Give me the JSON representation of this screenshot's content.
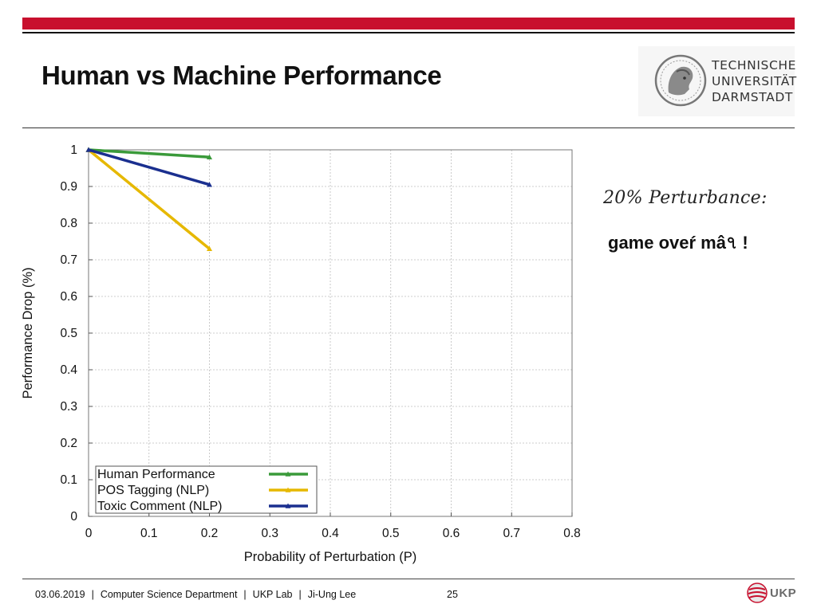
{
  "slide": {
    "title": "Human vs Machine Performance",
    "note_line1": "20% Perturbance:",
    "note_line2": "game oveŕ mâ৭ !"
  },
  "logo": {
    "lines": [
      "TECHNISCHE",
      "UNIVERSITÄT",
      "DARMSTADT"
    ]
  },
  "footer": {
    "date": "03.06.2019",
    "department": "Computer Science Department",
    "lab": "UKP Lab",
    "author": "Ji-Ung Lee",
    "separator": "|",
    "page": "25",
    "ukp_logo_text": "UKP"
  },
  "colors": {
    "accent_red": "#c8102e",
    "human": "#3a9a3a",
    "pos": "#e6b800",
    "toxic": "#1a2f8f"
  },
  "chart_data": {
    "type": "line",
    "xlabel": "Probability of Perturbation (P)",
    "ylabel": "Performance Drop (%)",
    "xlim": [
      0,
      0.8
    ],
    "ylim": [
      0,
      1
    ],
    "xticks": [
      0,
      0.1,
      0.2,
      0.3,
      0.4,
      0.5,
      0.6,
      0.7,
      0.8
    ],
    "xtick_labels": [
      "0",
      "0.1",
      "0.2",
      "0.3",
      "0.4",
      "0.5",
      "0.6",
      "0.7",
      "0.8"
    ],
    "yticks": [
      0,
      0.1,
      0.2,
      0.3,
      0.4,
      0.5,
      0.6,
      0.7,
      0.8,
      0.9,
      1
    ],
    "ytick_labels": [
      "0",
      "0.1",
      "0.2",
      "0.3",
      "0.4",
      "0.5",
      "0.6",
      "0.7",
      "0.8",
      "0.9",
      "1"
    ],
    "grid": true,
    "legend_position": "bottom-left",
    "series": [
      {
        "name": "Human Performance",
        "color": "#3a9a3a",
        "x": [
          0,
          0.2
        ],
        "y": [
          1.0,
          0.98
        ]
      },
      {
        "name": "POS Tagging (NLP)",
        "color": "#e6b800",
        "x": [
          0,
          0.2
        ],
        "y": [
          1.0,
          0.73
        ]
      },
      {
        "name": "Toxic Comment (NLP)",
        "color": "#1a2f8f",
        "x": [
          0,
          0.2
        ],
        "y": [
          1.0,
          0.905
        ]
      }
    ]
  }
}
